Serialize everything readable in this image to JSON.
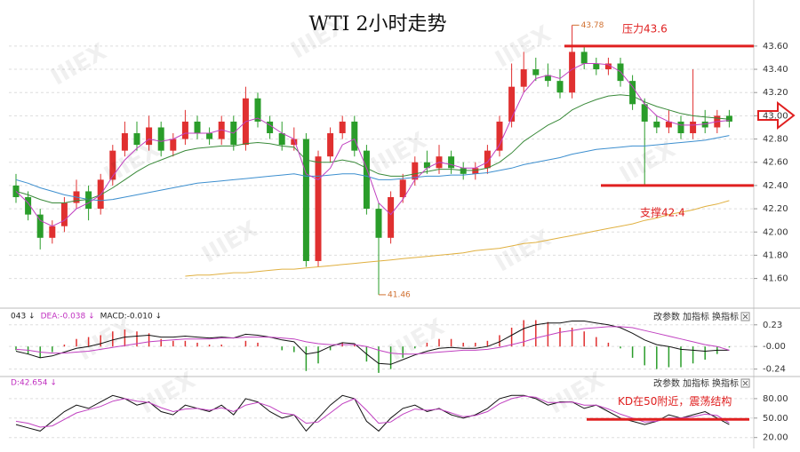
{
  "chart_data": [
    {
      "type": "candlestick",
      "title": "WTI 2小时走势",
      "watermark": "IIIEX",
      "up_color": "#e03030",
      "down_color": "#2a9d2a",
      "open": [
        42.4,
        42.3,
        42.15,
        41.95,
        42.05,
        42.25,
        42.35,
        42.2,
        42.45,
        42.7,
        42.85,
        42.75,
        42.9,
        42.7,
        42.8,
        42.95,
        42.85,
        42.8,
        42.95,
        42.75,
        43.15,
        42.95,
        42.85,
        42.75,
        42.8,
        41.75,
        42.65,
        42.85,
        42.95,
        42.7,
        42.2,
        41.95,
        42.3,
        42.45,
        42.6,
        42.55,
        42.65,
        42.55,
        42.5,
        42.55,
        42.7,
        42.95,
        43.25,
        43.4,
        43.35,
        43.3,
        43.2,
        43.55,
        43.45,
        43.4,
        43.45,
        43.3,
        43.1,
        42.95,
        42.9,
        42.95,
        42.85,
        42.95,
        42.9,
        43.0
      ],
      "high": [
        42.5,
        42.35,
        42.2,
        42.1,
        42.3,
        42.45,
        42.4,
        42.5,
        42.75,
        42.95,
        42.95,
        43.0,
        42.95,
        42.85,
        43.05,
        43.0,
        42.9,
        43.0,
        43.0,
        43.25,
        43.2,
        43.0,
        42.95,
        42.9,
        42.85,
        42.7,
        42.9,
        43.0,
        43.0,
        42.75,
        42.25,
        42.35,
        42.5,
        42.65,
        42.7,
        42.75,
        42.7,
        42.6,
        42.6,
        42.75,
        43.0,
        43.45,
        43.55,
        43.5,
        43.45,
        43.4,
        43.78,
        43.6,
        43.5,
        43.5,
        43.5,
        43.35,
        43.15,
        43.0,
        43.05,
        43.0,
        43.4,
        43.05,
        43.05,
        43.05
      ],
      "low": [
        42.25,
        42.1,
        41.85,
        41.9,
        42.0,
        42.2,
        42.1,
        42.15,
        42.4,
        42.65,
        42.7,
        42.7,
        42.65,
        42.65,
        42.75,
        42.8,
        42.75,
        42.75,
        42.7,
        42.7,
        42.9,
        42.8,
        42.7,
        42.7,
        41.7,
        41.7,
        42.6,
        42.8,
        42.65,
        42.15,
        41.46,
        41.9,
        42.25,
        42.4,
        42.5,
        42.5,
        42.5,
        42.45,
        42.45,
        42.5,
        42.65,
        42.9,
        43.2,
        43.3,
        43.25,
        43.15,
        43.15,
        43.4,
        43.35,
        43.35,
        43.25,
        43.05,
        42.4,
        42.85,
        42.85,
        42.8,
        42.8,
        42.85,
        42.85,
        42.9
      ],
      "close": [
        42.3,
        42.15,
        41.95,
        42.05,
        42.25,
        42.35,
        42.2,
        42.45,
        42.7,
        42.85,
        42.75,
        42.9,
        42.7,
        42.8,
        42.95,
        42.85,
        42.8,
        42.95,
        42.75,
        43.15,
        42.95,
        42.85,
        42.75,
        42.8,
        41.75,
        42.65,
        42.85,
        42.95,
        42.7,
        42.2,
        41.95,
        42.3,
        42.45,
        42.6,
        42.55,
        42.65,
        42.55,
        42.5,
        42.55,
        42.7,
        42.95,
        43.25,
        43.4,
        43.35,
        43.3,
        43.2,
        43.55,
        43.45,
        43.4,
        43.45,
        43.3,
        43.1,
        42.95,
        42.9,
        42.95,
        42.85,
        42.95,
        42.9,
        43.0,
        42.95
      ],
      "series": [
        {
          "color": "#3d8fcf",
          "values": [
            42.45,
            42.42,
            42.38,
            42.35,
            42.32,
            42.3,
            42.28,
            42.27,
            42.28,
            42.3,
            42.32,
            42.34,
            42.36,
            42.38,
            42.4,
            42.42,
            42.43,
            42.44,
            42.45,
            42.46,
            42.47,
            42.48,
            42.49,
            42.5,
            42.48,
            42.48,
            42.49,
            42.5,
            42.5,
            42.48,
            42.45,
            42.45,
            42.46,
            42.47,
            42.48,
            42.48,
            42.49,
            42.49,
            42.5,
            42.51,
            42.53,
            42.55,
            42.58,
            42.6,
            42.62,
            42.64,
            42.67,
            42.69,
            42.71,
            42.72,
            42.73,
            42.74,
            42.74,
            42.75,
            42.76,
            42.77,
            42.78,
            42.79,
            42.81,
            42.83
          ]
        },
        {
          "color": "#e0b040",
          "values": [
            null,
            null,
            null,
            null,
            null,
            null,
            null,
            null,
            null,
            null,
            null,
            null,
            null,
            null,
            41.62,
            41.63,
            41.63,
            41.64,
            41.65,
            41.65,
            41.66,
            41.67,
            41.68,
            41.68,
            41.69,
            41.7,
            41.71,
            41.72,
            41.73,
            41.74,
            41.75,
            41.76,
            41.77,
            41.78,
            41.79,
            41.8,
            41.81,
            41.82,
            41.84,
            41.85,
            41.86,
            41.88,
            41.9,
            41.91,
            41.93,
            41.95,
            41.97,
            41.99,
            42.01,
            42.03,
            42.05,
            42.07,
            42.1,
            42.12,
            42.15,
            42.17,
            42.19,
            42.22,
            42.24,
            42.27
          ]
        },
        {
          "color": "#3a8a3a",
          "values": [
            42.35,
            42.32,
            42.28,
            42.25,
            42.25,
            42.27,
            42.28,
            42.32,
            42.38,
            42.45,
            42.52,
            42.58,
            42.62,
            42.66,
            42.7,
            42.72,
            42.73,
            42.74,
            42.74,
            42.76,
            42.77,
            42.76,
            42.74,
            42.73,
            42.62,
            42.6,
            42.6,
            42.62,
            42.6,
            42.55,
            42.5,
            42.48,
            42.48,
            42.5,
            42.52,
            42.54,
            42.54,
            42.53,
            42.53,
            42.55,
            42.6,
            42.68,
            42.78,
            42.85,
            42.92,
            42.97,
            43.05,
            43.1,
            43.14,
            43.17,
            43.18,
            43.17,
            43.12,
            43.08,
            43.05,
            43.02,
            43.0,
            42.99,
            42.98,
            42.97
          ]
        },
        {
          "color": "#c040c0",
          "values": [
            42.35,
            42.25,
            42.1,
            42.05,
            42.1,
            42.2,
            42.25,
            42.32,
            42.48,
            42.62,
            42.72,
            42.8,
            42.78,
            42.8,
            42.85,
            42.85,
            42.85,
            42.88,
            42.85,
            42.95,
            42.98,
            42.92,
            42.85,
            42.8,
            42.5,
            42.45,
            42.55,
            42.75,
            42.8,
            42.55,
            42.25,
            42.15,
            42.28,
            42.45,
            42.55,
            42.6,
            42.58,
            42.55,
            42.55,
            42.6,
            42.75,
            42.98,
            43.2,
            43.32,
            43.35,
            43.32,
            43.4,
            43.45,
            43.45,
            43.44,
            43.38,
            43.25,
            43.1,
            43.0,
            42.95,
            42.92,
            42.92,
            42.93,
            42.95,
            42.96
          ]
        }
      ],
      "hlines": [
        {
          "value": 43.6,
          "color": "#e02020",
          "label": "压力43.6"
        },
        {
          "value": 42.4,
          "color": "#e02020",
          "label": "支撑42.4"
        }
      ],
      "ylim": [
        41.36,
        43.92
      ],
      "yticks": [
        {
          "value": 41.6,
          "label": "41.60"
        },
        {
          "value": 41.8,
          "label": "41.80"
        },
        {
          "value": 42.0,
          "label": "42.00"
        },
        {
          "value": 42.2,
          "label": "42.20"
        },
        {
          "value": 42.4,
          "label": "42.40"
        },
        {
          "value": 42.6,
          "label": "42.60"
        },
        {
          "value": 42.8,
          "label": "42.80"
        },
        {
          "value": 43.0,
          "label": "43.00"
        },
        {
          "value": 43.2,
          "label": "43.20"
        },
        {
          "value": 43.4,
          "label": "43.40"
        },
        {
          "value": 43.6,
          "label": "43.60"
        }
      ],
      "grid": true
    },
    {
      "type": "macd",
      "header": [
        {
          "text": "043 ↓",
          "color": "#222"
        },
        {
          "text": "DEA:-0.038 ↓",
          "color": "#c030c0"
        },
        {
          "text": "MACD:-0.010 ↓",
          "color": "#222"
        }
      ],
      "buttons": [
        "改参数",
        "加指标",
        "换指标"
      ],
      "up_color": "#e03030",
      "down_color": "#2a9d2a",
      "bars": [
        -0.04,
        -0.08,
        -0.12,
        -0.06,
        0.02,
        0.08,
        0.1,
        0.12,
        0.16,
        0.18,
        0.16,
        0.14,
        0.08,
        0.06,
        0.06,
        0.04,
        0.02,
        0.02,
        0.0,
        0.06,
        0.04,
        0.0,
        -0.04,
        -0.06,
        -0.26,
        -0.18,
        -0.04,
        0.04,
        0.02,
        -0.16,
        -0.28,
        -0.24,
        -0.12,
        -0.02,
        0.04,
        0.08,
        0.08,
        0.04,
        0.04,
        0.06,
        0.12,
        0.2,
        0.28,
        0.28,
        0.26,
        0.2,
        0.2,
        0.16,
        0.1,
        0.04,
        -0.02,
        -0.12,
        -0.2,
        -0.24,
        -0.22,
        -0.22,
        -0.18,
        -0.14,
        -0.08,
        -0.01
      ],
      "series": [
        {
          "color": "#111",
          "values": [
            -0.05,
            -0.08,
            -0.12,
            -0.1,
            -0.06,
            -0.02,
            0.0,
            0.03,
            0.07,
            0.1,
            0.11,
            0.12,
            0.1,
            0.1,
            0.11,
            0.1,
            0.09,
            0.1,
            0.09,
            0.13,
            0.12,
            0.1,
            0.07,
            0.05,
            -0.08,
            -0.06,
            0.0,
            0.04,
            0.03,
            -0.08,
            -0.18,
            -0.19,
            -0.14,
            -0.09,
            -0.05,
            -0.02,
            -0.01,
            -0.02,
            -0.02,
            0.0,
            0.05,
            0.12,
            0.19,
            0.23,
            0.25,
            0.25,
            0.27,
            0.27,
            0.25,
            0.23,
            0.2,
            0.14,
            0.07,
            0.02,
            0.0,
            -0.03,
            -0.04,
            -0.05,
            -0.04,
            -0.04
          ]
        },
        {
          "color": "#c040c0",
          "values": [
            -0.03,
            -0.04,
            -0.06,
            -0.07,
            -0.07,
            -0.06,
            -0.05,
            -0.03,
            -0.01,
            0.01,
            0.03,
            0.05,
            0.06,
            0.07,
            0.08,
            0.08,
            0.08,
            0.09,
            0.09,
            0.1,
            0.1,
            0.1,
            0.09,
            0.08,
            0.05,
            0.03,
            0.02,
            0.02,
            0.02,
            0.0,
            -0.04,
            -0.07,
            -0.08,
            -0.08,
            -0.07,
            -0.06,
            -0.05,
            -0.04,
            -0.04,
            -0.03,
            -0.01,
            0.02,
            0.05,
            0.09,
            0.12,
            0.15,
            0.17,
            0.19,
            0.2,
            0.21,
            0.21,
            0.2,
            0.17,
            0.14,
            0.11,
            0.08,
            0.05,
            0.02,
            0.0,
            -0.04
          ]
        }
      ],
      "ylim": [
        -0.3,
        0.36
      ],
      "yticks": [
        {
          "value": 0.23,
          "label": "0.23"
        },
        {
          "value": 0,
          "label": "-0.00"
        },
        {
          "value": -0.24,
          "label": "-0.24"
        }
      ],
      "grid": true
    },
    {
      "type": "kd",
      "header": [
        {
          "text": "D:42.654 ↓",
          "color": "#c030c0"
        }
      ],
      "buttons": [
        "改参数",
        "加指标",
        "换指标"
      ],
      "series": [
        {
          "color": "#111",
          "values": [
            40,
            35,
            30,
            45,
            60,
            70,
            65,
            75,
            85,
            80,
            70,
            75,
            60,
            55,
            70,
            65,
            60,
            70,
            55,
            80,
            75,
            60,
            50,
            55,
            30,
            50,
            70,
            85,
            80,
            45,
            30,
            50,
            65,
            70,
            60,
            65,
            55,
            50,
            55,
            65,
            80,
            85,
            85,
            80,
            70,
            75,
            75,
            65,
            70,
            60,
            50,
            45,
            40,
            45,
            55,
            50,
            55,
            60,
            50,
            40
          ]
        },
        {
          "color": "#c040c0",
          "values": [
            45,
            42,
            36,
            38,
            48,
            58,
            63,
            68,
            76,
            80,
            76,
            74,
            66,
            60,
            64,
            65,
            62,
            66,
            60,
            70,
            74,
            68,
            58,
            55,
            42,
            44,
            58,
            72,
            80,
            62,
            42,
            44,
            56,
            64,
            62,
            64,
            58,
            52,
            54,
            60,
            72,
            80,
            84,
            82,
            74,
            74,
            75,
            70,
            70,
            64,
            56,
            50,
            44,
            45,
            50,
            50,
            52,
            56,
            54,
            42.654
          ]
        }
      ],
      "hlines": [
        {
          "value": 48,
          "color": "#e02020",
          "label": "KD在50附近，震荡结构"
        }
      ],
      "ylim": [
        10,
        110
      ],
      "yticks": [
        {
          "value": 20,
          "label": "20.00"
        },
        {
          "value": 50,
          "label": "50.00"
        },
        {
          "value": 80,
          "label": "80.00"
        }
      ],
      "grid": true
    }
  ]
}
